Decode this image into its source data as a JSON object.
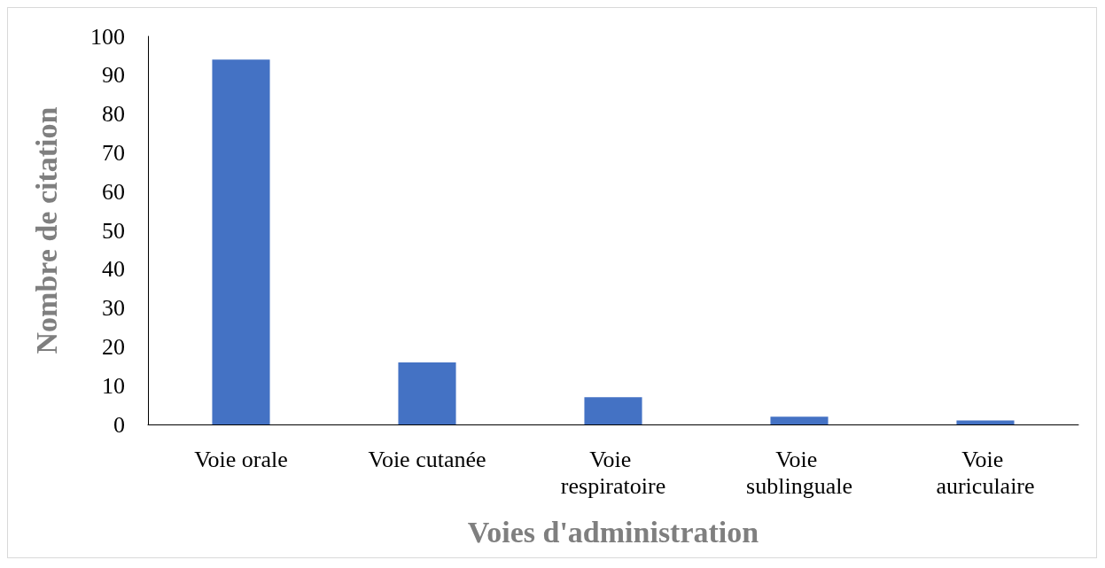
{
  "chart_data": {
    "type": "bar",
    "xlabel": "Voies d'administration",
    "ylabel": "Nombre de citation",
    "categories": [
      "Voie orale",
      "Voie cutanée",
      "Voie respiratoire",
      "Voie sublinguale",
      "Voie auriculaire"
    ],
    "values": [
      94,
      16,
      7,
      2,
      1
    ],
    "color": "#4472c4",
    "ylim": [
      0,
      100
    ],
    "yticks": [
      0,
      10,
      20,
      30,
      40,
      50,
      60,
      70,
      80,
      90,
      100
    ],
    "grid": false
  }
}
